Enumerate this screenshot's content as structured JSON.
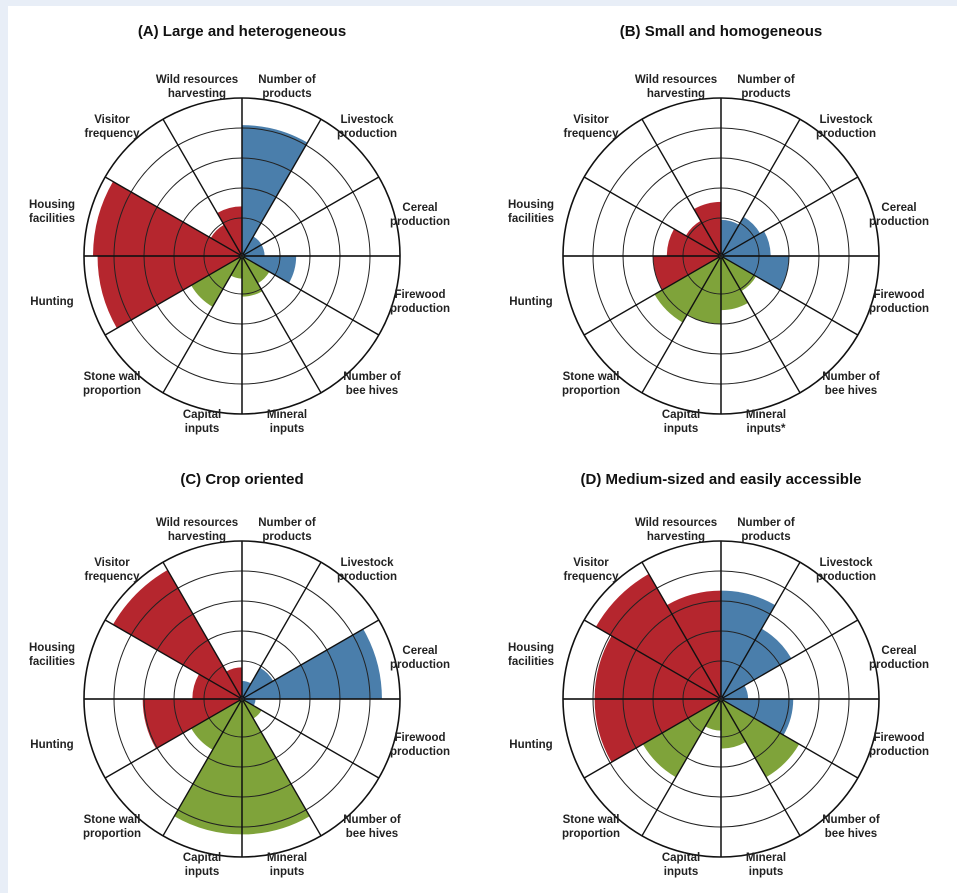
{
  "chart_data": [
    {
      "type": "polar-area",
      "title": "(A) Large and heterogeneous",
      "categories": [
        "Number of products",
        "Livestock production",
        "Cereal production",
        "Firewood production",
        "Number of bee hives",
        "Mineral inputs",
        "Capital inputs",
        "Stone wall proportion",
        "Hunting",
        "Housing facilities",
        "Visitor frequency",
        "Wild resources harvesting"
      ],
      "values": [
        2.9,
        0.5,
        0.5,
        1.2,
        0.7,
        0.9,
        0.5,
        1.3,
        3.2,
        3.3,
        0.8,
        1.1
      ],
      "colors": [
        "#4a7eab",
        "#4a7eab",
        "#4a7eab",
        "#4a7eab",
        "#7fa33a",
        "#7fa33a",
        "#7fa33a",
        "#7fa33a",
        "#b5262e",
        "#b5262e",
        "#b5262e",
        "#b5262e"
      ],
      "rings": 5
    },
    {
      "type": "polar-area",
      "title": "(B) Small and homogeneous",
      "categories": [
        "Number of products",
        "Livestock production",
        "Cereal production",
        "Firewood production",
        "Number of bee hives",
        "Mineral inputs",
        "Capital inputs",
        "Stone wall proportion",
        "Hunting",
        "Housing facilities",
        "Visitor frequency",
        "Wild resources harvesting"
      ],
      "values": [
        0.8,
        1.0,
        1.1,
        1.5,
        0.9,
        1.2,
        1.5,
        1.7,
        1.5,
        1.2,
        0.9,
        1.2
      ],
      "colors": [
        "#4a7eab",
        "#4a7eab",
        "#4a7eab",
        "#4a7eab",
        "#7fa33a",
        "#7fa33a",
        "#7fa33a",
        "#7fa33a",
        "#b5262e",
        "#b5262e",
        "#b5262e",
        "#b5262e"
      ],
      "rings": 5,
      "labels_note": [
        "Mineral inputs*"
      ]
    },
    {
      "type": "polar-area",
      "title": "(C) Crop oriented",
      "categories": [
        "Number of products",
        "Livestock production",
        "Cereal production",
        "Firewood production",
        "Number of bee hives",
        "Mineral inputs",
        "Capital inputs",
        "Stone wall proportion",
        "Hunting",
        "Housing facilities",
        "Visitor frequency",
        "Wild resources harvesting"
      ],
      "values": [
        0.4,
        0.8,
        3.1,
        0.3,
        0.5,
        3.0,
        3.0,
        1.3,
        2.2,
        1.1,
        3.3,
        0.7
      ],
      "colors": [
        "#4a7eab",
        "#4a7eab",
        "#4a7eab",
        "#4a7eab",
        "#7fa33a",
        "#7fa33a",
        "#7fa33a",
        "#7fa33a",
        "#b5262e",
        "#b5262e",
        "#b5262e",
        "#b5262e"
      ],
      "rings": 5
    },
    {
      "type": "polar-area",
      "title": "(D) Medium-sized and easily accessible",
      "categories": [
        "Number of products",
        "Livestock production",
        "Cereal production",
        "Firewood production",
        "Number of bee hives",
        "Mineral inputs",
        "Capital inputs",
        "Stone wall proportion",
        "Hunting",
        "Housing facilities",
        "Visitor frequency",
        "Wild resources harvesting"
      ],
      "values": [
        2.4,
        1.8,
        0.6,
        1.6,
        2.0,
        1.1,
        0.7,
        2.0,
        2.8,
        2.8,
        3.2,
        2.4
      ],
      "colors": [
        "#4a7eab",
        "#4a7eab",
        "#4a7eab",
        "#4a7eab",
        "#7fa33a",
        "#7fa33a",
        "#7fa33a",
        "#7fa33a",
        "#b5262e",
        "#b5262e",
        "#b5262e",
        "#b5262e"
      ],
      "rings": 5
    }
  ]
}
